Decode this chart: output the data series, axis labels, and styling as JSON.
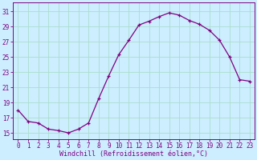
{
  "x": [
    0,
    1,
    2,
    3,
    4,
    5,
    6,
    7,
    8,
    9,
    10,
    11,
    12,
    13,
    14,
    15,
    16,
    17,
    18,
    19,
    20,
    21,
    22,
    23
  ],
  "y": [
    18.0,
    16.5,
    16.3,
    15.5,
    15.3,
    15.0,
    15.5,
    16.3,
    19.5,
    22.5,
    25.3,
    27.2,
    29.2,
    29.7,
    30.3,
    30.8,
    30.5,
    29.8,
    29.3,
    28.5,
    27.2,
    25.0,
    22.0,
    21.8
  ],
  "line_color": "#800080",
  "marker": "+",
  "bg_color": "#cceeff",
  "grid_color": "#aaddcc",
  "xlabel": "Windchill (Refroidissement éolien,°C)",
  "ylabel_ticks": [
    15,
    17,
    19,
    21,
    23,
    25,
    27,
    29,
    31
  ],
  "xlim": [
    -0.5,
    23.5
  ],
  "ylim": [
    14.2,
    32.2
  ],
  "label_color": "#800080",
  "font_family": "monospace",
  "tick_fontsize": 5.5,
  "xlabel_fontsize": 6.0
}
